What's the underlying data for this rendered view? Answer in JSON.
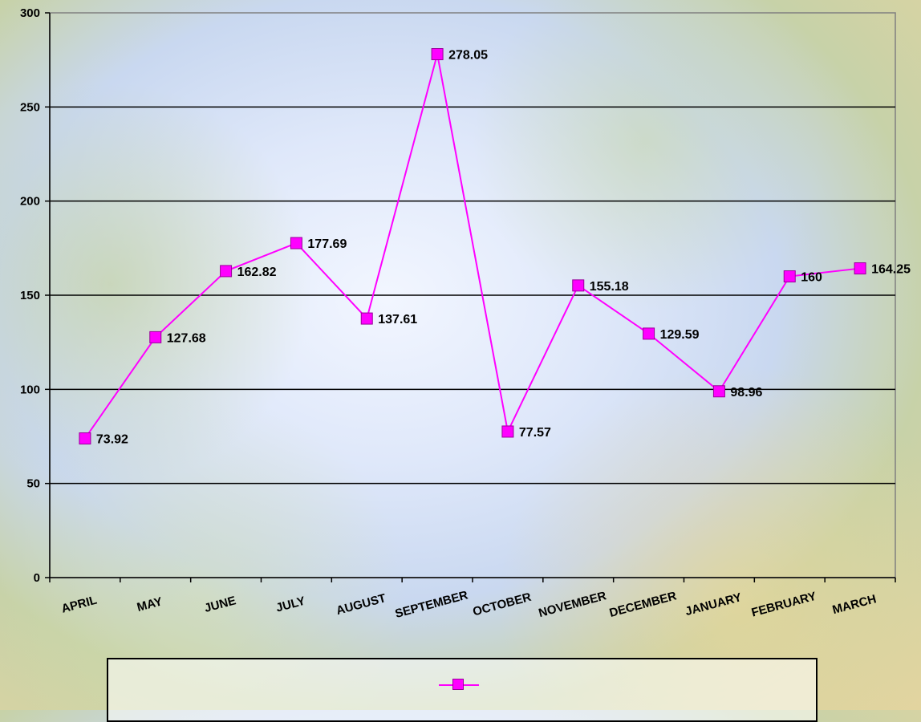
{
  "chart_data": {
    "type": "line",
    "categories": [
      "APRIL",
      "MAY",
      "JUNE",
      "JULY",
      "AUGUST",
      "SEPTEMBER",
      "OCTOBER",
      "NOVEMBER",
      "DECEMBER",
      "JANUARY",
      "FEBRUARY",
      "MARCH"
    ],
    "series": [
      {
        "values": [
          73.92,
          127.68,
          162.82,
          177.69,
          137.61,
          278.05,
          77.57,
          155.18,
          129.59,
          98.96,
          160,
          164.25
        ],
        "labels": [
          "73.92",
          "127.68",
          "162.82",
          "177.69",
          "137.61",
          "278.05",
          "77.57",
          "155.18",
          "129.59",
          "98.96",
          "160",
          "164.25"
        ],
        "color": "#ff00ff"
      }
    ],
    "ylim": [
      0,
      300
    ],
    "yticks": [
      "0",
      "50",
      "100",
      "150",
      "200",
      "250",
      "300"
    ],
    "grid": true,
    "legend": "bottom"
  }
}
